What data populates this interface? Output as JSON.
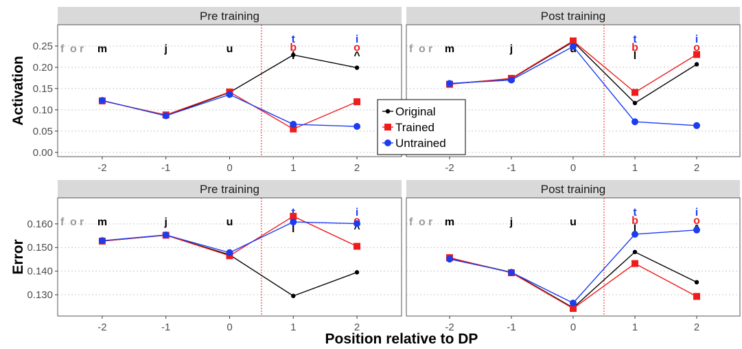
{
  "colors": {
    "original": "#000000",
    "trained": "#ee1c1c",
    "untrained": "#1c3cf0",
    "context_letters": "#9a9a9a",
    "strip_bg": "#d9d9d9",
    "grid": "#c8c8c8",
    "divider": "#ee1c1c"
  },
  "chart_data": {
    "type": "line",
    "xlabel": "Position relative to DP",
    "x": [
      -2,
      -1,
      0,
      1,
      2
    ],
    "x_tick_labels": [
      "-2",
      "-1",
      "0",
      "1",
      "2"
    ],
    "xlim": [
      -2.7,
      2.7
    ],
    "divider_x": 0.5,
    "legend": {
      "placement": "center",
      "entries": [
        {
          "key": "original",
          "label": "Original"
        },
        {
          "key": "trained",
          "label": "Trained"
        },
        {
          "key": "untrained",
          "label": "Untrained"
        }
      ]
    },
    "context_letters": [
      "f",
      "o",
      "r"
    ],
    "position_letters": [
      {
        "x": -2,
        "letters": [
          "m"
        ]
      },
      {
        "x": -1,
        "letters": [
          "j"
        ]
      },
      {
        "x": 0,
        "letters": [
          "u"
        ]
      },
      {
        "x": 1,
        "letters": [
          "t",
          "b",
          "l"
        ]
      },
      {
        "x": 2,
        "letters": [
          "i",
          "o",
          "^"
        ]
      }
    ],
    "rows": [
      {
        "ylabel": "Activation",
        "ylim": [
          -0.01,
          0.3
        ],
        "yticks": [
          0.0,
          0.05,
          0.1,
          0.15,
          0.2,
          0.25
        ],
        "ytick_labels": [
          "0.00",
          "0.05",
          "0.10",
          "0.15",
          "0.20",
          "0.25"
        ],
        "panels": [
          {
            "title": "Pre training",
            "series": [
              {
                "key": "original",
                "name": "Original",
                "values": [
                  0.122,
                  0.086,
                  0.141,
                  0.229,
                  0.199
                ]
              },
              {
                "key": "trained",
                "name": "Trained",
                "values": [
                  0.121,
                  0.088,
                  0.142,
                  0.055,
                  0.119
                ]
              },
              {
                "key": "untrained",
                "name": "Untrained",
                "values": [
                  0.122,
                  0.086,
                  0.136,
                  0.066,
                  0.061
                ]
              }
            ]
          },
          {
            "title": "Post training",
            "series": [
              {
                "key": "original",
                "name": "Original",
                "values": [
                  0.161,
                  0.173,
                  0.26,
                  0.116,
                  0.207
                ]
              },
              {
                "key": "trained",
                "name": "Trained",
                "values": [
                  0.16,
                  0.174,
                  0.262,
                  0.141,
                  0.23
                ]
              },
              {
                "key": "untrained",
                "name": "Untrained",
                "values": [
                  0.162,
                  0.17,
                  0.249,
                  0.072,
                  0.063
                ]
              }
            ]
          }
        ]
      },
      {
        "ylabel": "Error",
        "ylim": [
          0.121,
          0.171
        ],
        "yticks": [
          0.13,
          0.14,
          0.15,
          0.16
        ],
        "ytick_labels": [
          "0.130",
          "0.140",
          "0.150",
          "0.160"
        ],
        "panels": [
          {
            "title": "Pre training",
            "series": [
              {
                "key": "original",
                "name": "Original",
                "values": [
                  0.1527,
                  0.1552,
                  0.1469,
                  0.1295,
                  0.1395
                ]
              },
              {
                "key": "trained",
                "name": "Trained",
                "values": [
                  0.1527,
                  0.1552,
                  0.1465,
                  0.1632,
                  0.1505
                ]
              },
              {
                "key": "untrained",
                "name": "Untrained",
                "values": [
                  0.1529,
                  0.1553,
                  0.1478,
                  0.1608,
                  0.1601
                ]
              }
            ]
          },
          {
            "title": "Post training",
            "series": [
              {
                "key": "original",
                "name": "Original",
                "values": [
                  0.1455,
                  0.1395,
                  0.1245,
                  0.1481,
                  0.1353
                ]
              },
              {
                "key": "trained",
                "name": "Trained",
                "values": [
                  0.1457,
                  0.1393,
                  0.1242,
                  0.1432,
                  0.1293
                ]
              },
              {
                "key": "untrained",
                "name": "Untrained",
                "values": [
                  0.1451,
                  0.1395,
                  0.1265,
                  0.1556,
                  0.1574
                ]
              }
            ]
          }
        ]
      }
    ]
  }
}
